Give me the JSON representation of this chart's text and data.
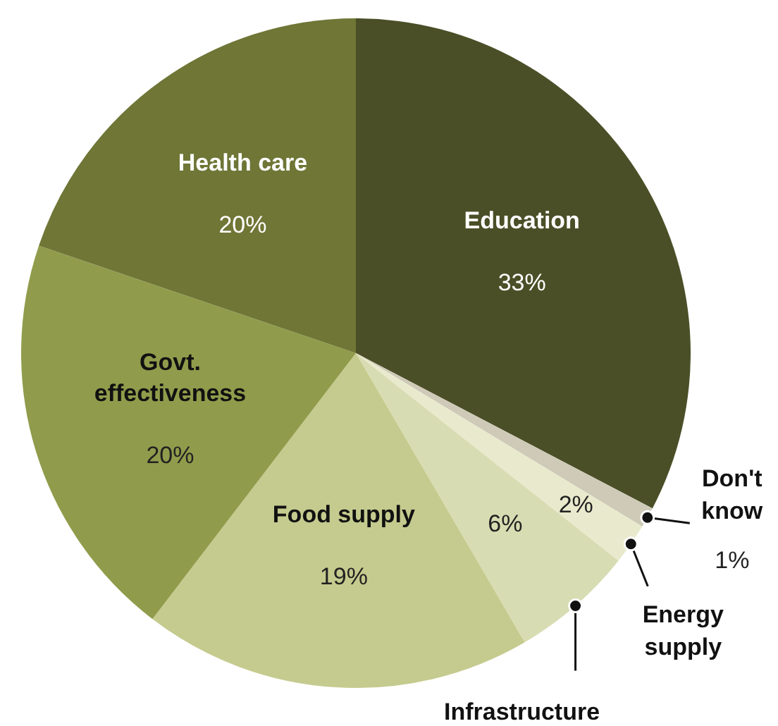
{
  "chart_data": {
    "type": "pie",
    "categories": [
      "Education",
      "Don't know",
      "Energy supply",
      "Infrastructure",
      "Food supply",
      "Govt. effectiveness",
      "Health care"
    ],
    "values": [
      33,
      1,
      2,
      6,
      19,
      20,
      20
    ],
    "colors": [
      "#4a4f27",
      "#cfcab8",
      "#e9eacd",
      "#d8dcb2",
      "#c5cb8e",
      "#909c4b",
      "#6f7636"
    ],
    "value_labels": [
      "33%",
      "1%",
      "2%",
      "6%",
      "19%",
      "20%",
      "20%"
    ],
    "legend": false
  }
}
